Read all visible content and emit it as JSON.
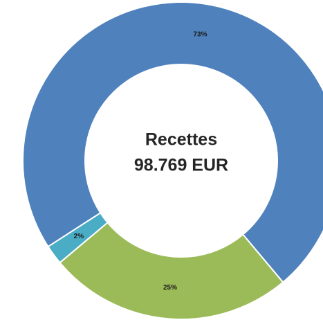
{
  "chart_data": {
    "type": "donut",
    "center_text": [
      "Recettes",
      "98.769 EUR"
    ],
    "values": [
      25,
      2,
      73
    ],
    "value_labels": [
      "25%",
      "2%",
      "73%"
    ],
    "colors": [
      "#9bbb59",
      "#4bacc6",
      "#4f81bd"
    ]
  }
}
